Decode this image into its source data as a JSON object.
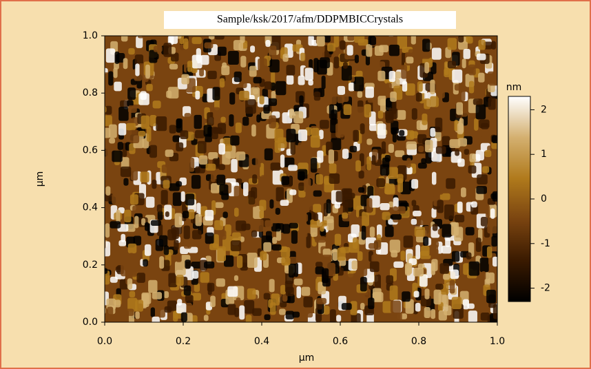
{
  "chart_data": {
    "type": "image",
    "title": "Sample/ksk/2017/afm/DDPMBICCrystals",
    "x_label": "µm",
    "y_label": "µm",
    "xlim": [
      0,
      1
    ],
    "ylim": [
      0,
      1
    ],
    "xticks": [
      {
        "value": 0,
        "label": "0.0"
      },
      0.2,
      0.4,
      0.6,
      0.8,
      {
        "value": 1,
        "label": "1.0"
      }
    ],
    "yticks": [
      {
        "value": 0,
        "label": "0.0"
      },
      0.2,
      0.4,
      0.6,
      0.8,
      {
        "value": 1,
        "label": "1.0"
      }
    ],
    "colorbar": {
      "label": "nm",
      "zlim": [
        -2.3,
        2.3
      ],
      "ticks": [
        -2,
        -1,
        0,
        1,
        2
      ],
      "colormap": [
        "#000000",
        "#3a1a00",
        "#7a4410",
        "#b07a1c",
        "#d4b070",
        "#ffffff"
      ]
    }
  }
}
